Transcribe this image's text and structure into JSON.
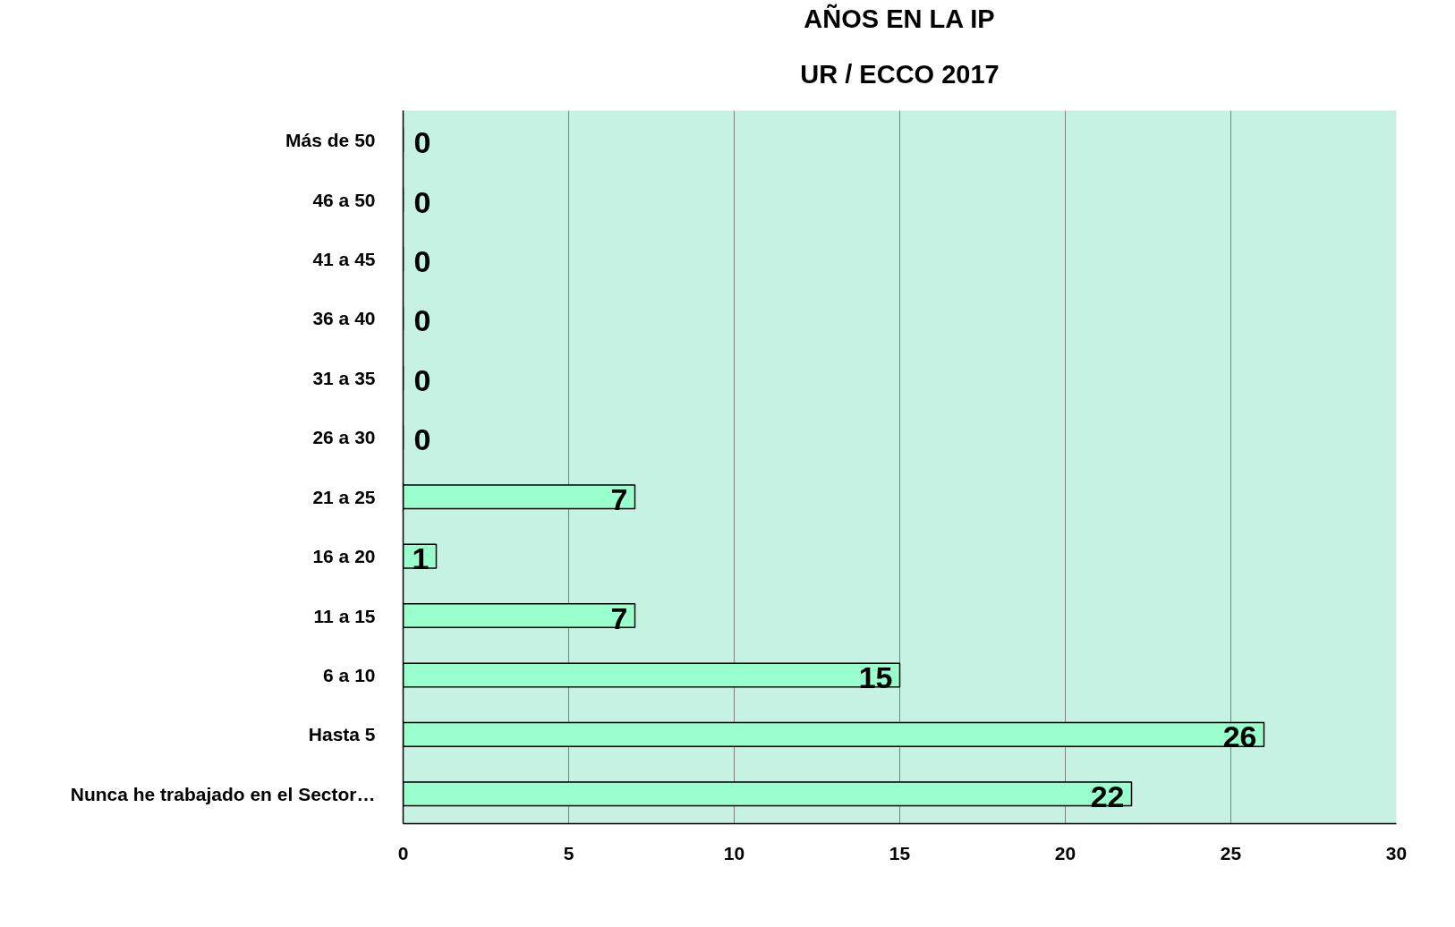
{
  "chart_data": {
    "type": "bar",
    "orientation": "horizontal",
    "title": "AÑOS EN LA IP",
    "subtitle": "UR / ECCO 2017",
    "categories": [
      "Más de 50",
      "46 a 50",
      "41 a 45",
      "36 a 40",
      "31 a 35",
      "26 a 30",
      "21 a 25",
      "16 a 20",
      "11 a 15",
      "6 a 10",
      "Hasta 5",
      "Nunca he trabajado en el Sector…"
    ],
    "values": [
      0,
      0,
      0,
      0,
      0,
      0,
      7,
      1,
      7,
      15,
      26,
      22
    ],
    "color": "#99ffcc",
    "xlim": [
      0,
      30
    ],
    "xticks": [
      0,
      5,
      10,
      15,
      20,
      25,
      30
    ],
    "grid": "x",
    "data_labels": true
  }
}
